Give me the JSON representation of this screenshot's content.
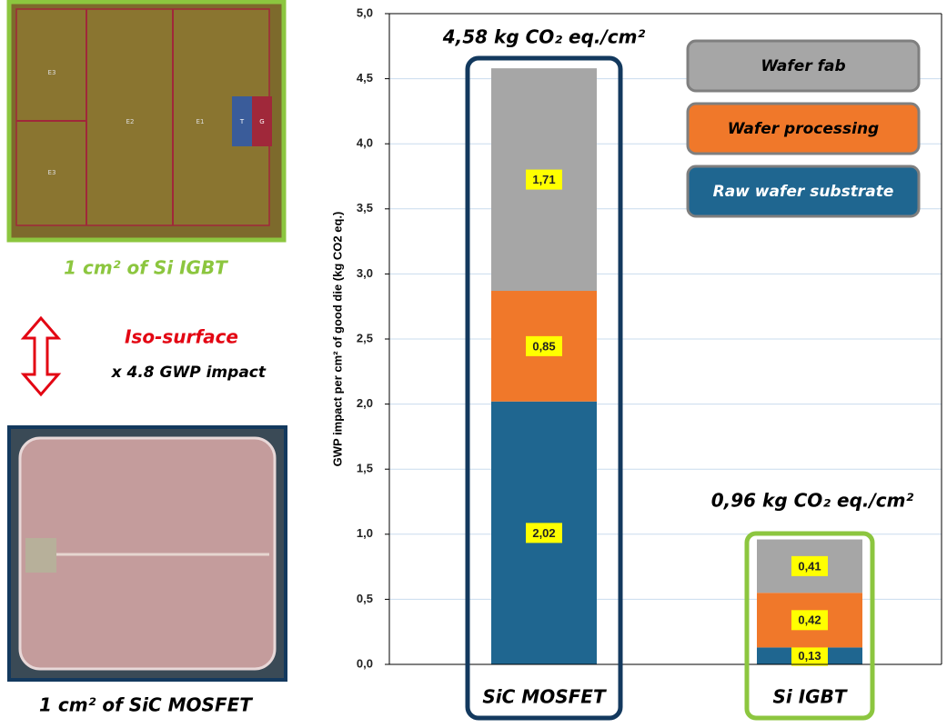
{
  "chart_data": {
    "type": "stacked-bar",
    "y_label": "GWP impact per cm² of good die (kg CO2 eq.)",
    "categories": [
      "SiC MOSFET",
      "Si IGBT"
    ],
    "series": [
      {
        "name": "Raw wafer substrate",
        "color": "#1f6690",
        "values": [
          2.02,
          0.13
        ],
        "value_labels": [
          "2,02",
          "0,13"
        ]
      },
      {
        "name": "Wafer processing",
        "color": "#f0782a",
        "values": [
          0.85,
          0.42
        ],
        "value_labels": [
          "0,85",
          "0,42"
        ]
      },
      {
        "name": "Wafer fab",
        "color": "#a6a6a6",
        "values": [
          1.71,
          0.41
        ],
        "value_labels": [
          "1,71",
          "0,41"
        ]
      }
    ],
    "annotations": [
      "4,58 kg CO₂ eq./cm²",
      "0,96 kg CO₂ eq./cm²"
    ],
    "ylim": [
      0,
      5
    ],
    "yticks": [
      {
        "value": 0,
        "label": "0,0"
      },
      {
        "value": 0.5,
        "label": "0,5"
      },
      {
        "value": 1,
        "label": "1,0"
      },
      {
        "value": 1.5,
        "label": "1,5"
      },
      {
        "value": 2,
        "label": "2,0"
      },
      {
        "value": 2.5,
        "label": "2,5"
      },
      {
        "value": 3,
        "label": "3,0"
      },
      {
        "value": 3.5,
        "label": "3,5"
      },
      {
        "value": 4,
        "label": "4,0"
      },
      {
        "value": 4.5,
        "label": "4,5"
      },
      {
        "value": 5,
        "label": "5,0"
      }
    ],
    "grid": true
  },
  "panel": {
    "top_caption": "1 cm² of Si IGBT",
    "arrow_label": "Iso-surface",
    "arrow_sublabel": "x 4.8 GWP impact",
    "bottom_caption": "1 cm² of SiC MOSFET",
    "die_labels": [
      "E3",
      "E3",
      "E2",
      "E1",
      "T",
      "G"
    ]
  }
}
